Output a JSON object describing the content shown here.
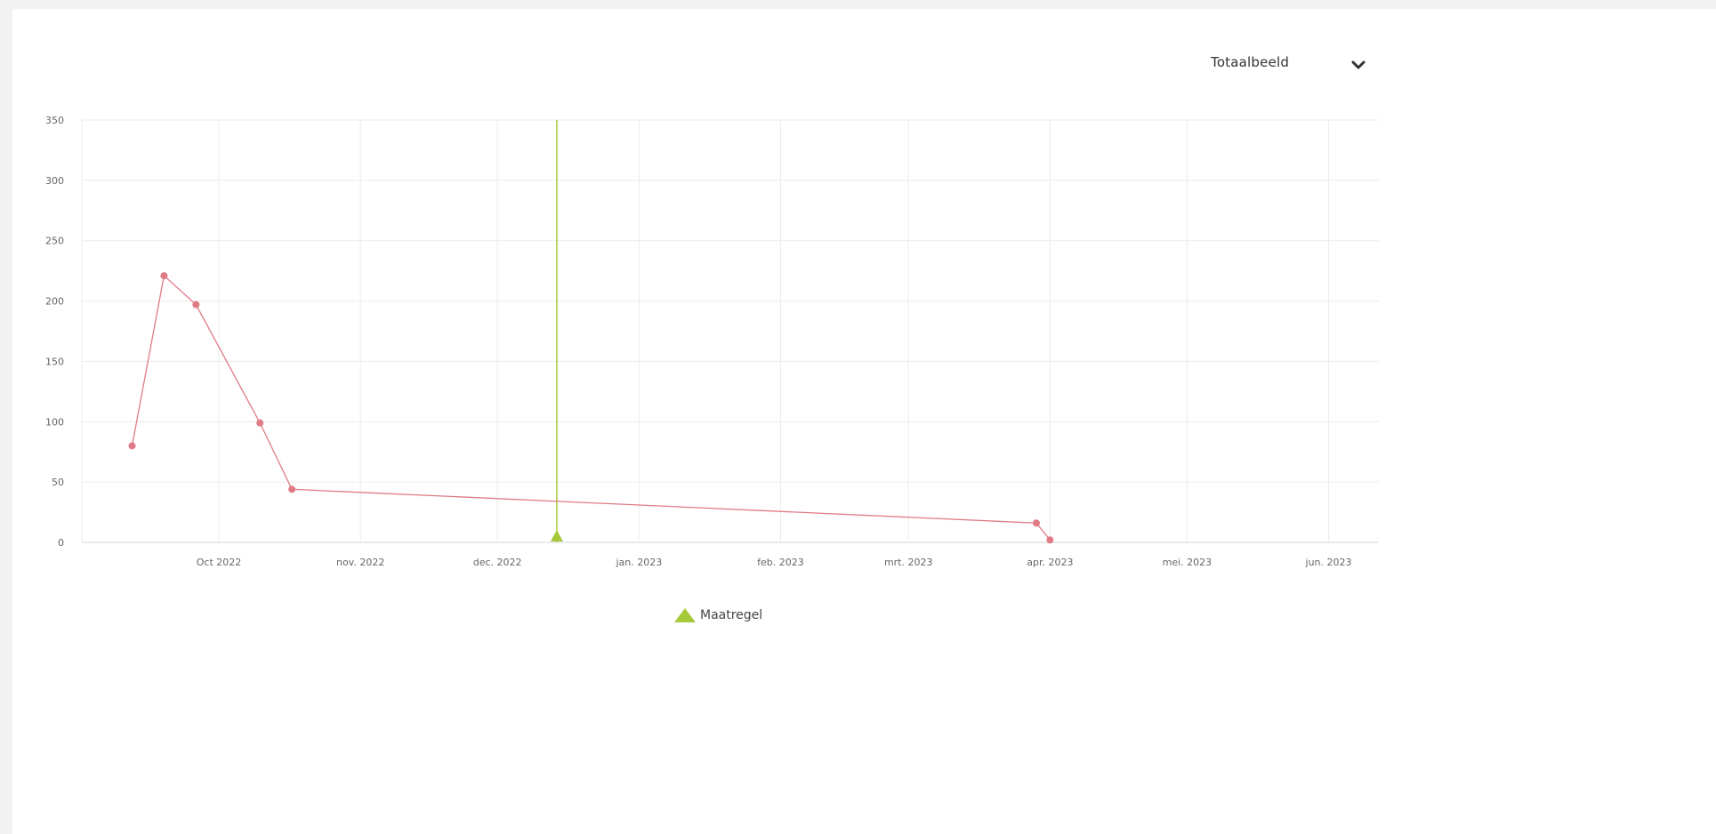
{
  "selector": {
    "label": "Totaalbeeld",
    "icon": "chevron-down-icon"
  },
  "chart_data": {
    "type": "line",
    "title": "",
    "xlabel": "",
    "ylabel": "",
    "ylim": [
      0,
      350
    ],
    "xlim": [
      "2022-09-01",
      "2023-06-12"
    ],
    "y_ticks": [
      0,
      50,
      100,
      150,
      200,
      250,
      300,
      350
    ],
    "x_ticks": [
      {
        "date": "2022-10-01",
        "label": "Oct 2022"
      },
      {
        "date": "2022-11-01",
        "label": "nov. 2022"
      },
      {
        "date": "2022-12-01",
        "label": "dec. 2022"
      },
      {
        "date": "2023-01-01",
        "label": "jan. 2023"
      },
      {
        "date": "2023-02-01",
        "label": "feb. 2023"
      },
      {
        "date": "2023-03-01",
        "label": "mrt. 2023"
      },
      {
        "date": "2023-04-01",
        "label": "apr. 2023"
      },
      {
        "date": "2023-05-01",
        "label": "mei. 2023"
      },
      {
        "date": "2023-06-01",
        "label": "jun. 2023"
      }
    ],
    "grid": true,
    "series": [
      {
        "color": "#e07a86",
        "points": [
          {
            "x": "2022-09-12",
            "y": 80
          },
          {
            "x": "2022-09-19",
            "y": 221
          },
          {
            "x": "2022-09-26",
            "y": 197
          },
          {
            "x": "2022-10-10",
            "y": 99
          },
          {
            "x": "2022-10-17",
            "y": 44
          },
          {
            "x": "2023-03-29",
            "y": 16
          },
          {
            "x": "2023-04-01",
            "y": 2
          }
        ]
      }
    ],
    "markers": [
      {
        "name": "Maatregel",
        "x": "2022-12-14",
        "color": "#a6c93a",
        "shape": "triangle"
      }
    ],
    "legend": {
      "position": "bottom",
      "items": [
        {
          "label": "Maatregel",
          "color": "#a6c93a",
          "shape": "triangle"
        }
      ]
    }
  }
}
